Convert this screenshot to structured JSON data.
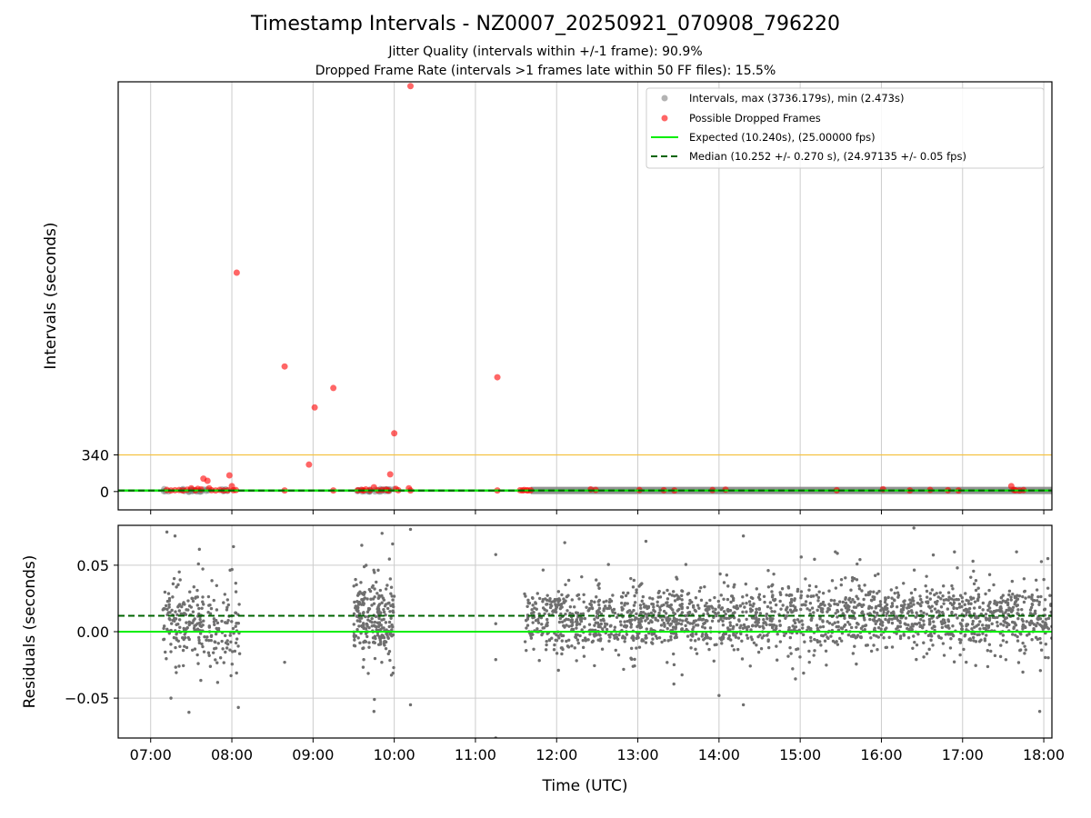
{
  "figure": {
    "title": "Timestamp Intervals - NZ0007_20250921_070908_796220",
    "subtitle_1": "Jitter Quality (intervals within +/-1 frame): 90.9%",
    "subtitle_2": "Dropped Frame Rate (intervals >1 frames late within 50 FF files): 15.5%"
  },
  "colors": {
    "intervals": "#808080",
    "dropped": "#ff0000",
    "expected": "#00ee00",
    "median": "#006400",
    "threshold": "#f5c242",
    "grid": "#cccccc"
  },
  "chart_data": [
    {
      "type": "scatter",
      "panel": "top",
      "xlabel": "",
      "ylabel": "Intervals (seconds)",
      "x_unit": "hours UTC",
      "xlim": [
        6.6,
        18.1
      ],
      "ylim": [
        -170,
        3800
      ],
      "y_ticks": [
        0,
        340
      ],
      "y_tick_labels": [
        "0",
        "340"
      ],
      "x_ticks": [
        7,
        8,
        9,
        10,
        11,
        12,
        13,
        14,
        15,
        16,
        17,
        18
      ],
      "grid": true,
      "legend_position": "upper right",
      "legend": [
        {
          "label": "Intervals, max (3736.179s), min (2.473s)",
          "marker": "circle",
          "color": "#808080"
        },
        {
          "label": "Possible Dropped Frames",
          "marker": "circle",
          "color": "#ff0000"
        },
        {
          "label": "Expected (10.240s), (25.00000 fps)",
          "marker": "solid",
          "color": "#00ee00"
        },
        {
          "label": "Median (10.252 +/- 0.270 s), (24.97135 +/- 0.05 fps)",
          "marker": "dashed",
          "color": "#006400"
        }
      ],
      "hlines": [
        {
          "y": 340,
          "style": "solid",
          "color": "#f5c242"
        },
        {
          "y": 10.24,
          "style": "solid",
          "color": "#00ee00"
        },
        {
          "y": 10.252,
          "style": "dashed",
          "color": "#006400"
        }
      ],
      "dense_intervals_band": {
        "x_start": 11.68,
        "x_end": 18.1,
        "y": 10.25
      },
      "interval_clusters": [
        [
          7.15,
          7.95
        ],
        [
          9.5,
          10.0
        ]
      ],
      "dropped_points": [
        [
          7.2,
          15
        ],
        [
          7.25,
          10
        ],
        [
          7.3,
          12
        ],
        [
          7.35,
          14
        ],
        [
          7.4,
          10
        ],
        [
          7.45,
          18
        ],
        [
          7.5,
          30
        ],
        [
          7.55,
          12
        ],
        [
          7.58,
          25
        ],
        [
          7.62,
          20
        ],
        [
          7.65,
          120
        ],
        [
          7.7,
          100
        ],
        [
          7.72,
          30
        ],
        [
          7.75,
          12
        ],
        [
          7.8,
          10
        ],
        [
          7.85,
          15
        ],
        [
          7.9,
          10
        ],
        [
          7.95,
          12
        ],
        [
          7.97,
          150
        ],
        [
          8.0,
          50
        ],
        [
          8.02,
          12
        ],
        [
          8.05,
          14
        ],
        [
          8.06,
          2030
        ],
        [
          8.65,
          1160
        ],
        [
          8.65,
          10
        ],
        [
          8.95,
          250
        ],
        [
          9.02,
          780
        ],
        [
          9.25,
          960
        ],
        [
          9.25,
          10
        ],
        [
          9.55,
          12
        ],
        [
          9.6,
          15
        ],
        [
          9.62,
          10
        ],
        [
          9.65,
          20
        ],
        [
          9.7,
          12
        ],
        [
          9.75,
          40
        ],
        [
          9.8,
          12
        ],
        [
          9.85,
          15
        ],
        [
          9.9,
          18
        ],
        [
          9.93,
          10
        ],
        [
          9.95,
          160
        ],
        [
          10.0,
          540
        ],
        [
          10.02,
          25
        ],
        [
          10.05,
          12
        ],
        [
          10.18,
          30
        ],
        [
          10.2,
          10
        ],
        [
          10.2,
          3760
        ],
        [
          11.27,
          1060
        ],
        [
          11.27,
          10
        ],
        [
          11.55,
          12
        ],
        [
          11.58,
          10
        ],
        [
          11.6,
          14
        ],
        [
          11.63,
          12
        ],
        [
          11.65,
          10
        ],
        [
          11.68,
          12
        ],
        [
          12.42,
          20
        ],
        [
          12.48,
          15
        ],
        [
          13.02,
          14
        ],
        [
          13.32,
          12
        ],
        [
          13.45,
          10
        ],
        [
          13.92,
          14
        ],
        [
          14.08,
          18
        ],
        [
          15.45,
          12
        ],
        [
          16.02,
          22
        ],
        [
          16.35,
          10
        ],
        [
          16.6,
          15
        ],
        [
          16.82,
          12
        ],
        [
          16.95,
          10
        ],
        [
          17.6,
          50
        ],
        [
          17.63,
          15
        ],
        [
          17.65,
          12
        ],
        [
          17.7,
          10
        ],
        [
          17.75,
          14
        ]
      ]
    },
    {
      "type": "scatter",
      "panel": "bottom",
      "xlabel": "Time (UTC)",
      "ylabel": "Residuals (seconds)",
      "x_unit": "hours UTC",
      "xlim": [
        6.6,
        18.1
      ],
      "ylim": [
        -0.08,
        0.08
      ],
      "y_ticks": [
        -0.05,
        0.0,
        0.05
      ],
      "y_tick_labels": [
        "−0.05",
        "0.00",
        "0.05"
      ],
      "x_ticks": [
        7,
        8,
        9,
        10,
        11,
        12,
        13,
        14,
        15,
        16,
        17,
        18
      ],
      "x_tick_labels": [
        "07:00",
        "08:00",
        "09:00",
        "10:00",
        "11:00",
        "12:00",
        "13:00",
        "14:00",
        "15:00",
        "16:00",
        "17:00",
        "18:00"
      ],
      "grid": true,
      "hlines": [
        {
          "y": 0.0,
          "style": "solid",
          "color": "#00ee00"
        },
        {
          "y": 0.012,
          "style": "dashed",
          "color": "#006400"
        }
      ],
      "residual_clusters": [
        {
          "x_range": [
            7.15,
            7.6
          ],
          "mean": 0.01,
          "spread": 0.025,
          "count": 140
        },
        {
          "x_range": [
            7.6,
            8.1
          ],
          "mean": 0.005,
          "spread": 0.025,
          "count": 120
        },
        {
          "x_range": [
            9.5,
            10.0
          ],
          "mean": 0.01,
          "spread": 0.028,
          "count": 240
        },
        {
          "x_range": [
            11.6,
            18.1
          ],
          "mean": 0.01,
          "spread": 0.022,
          "count": 1900
        }
      ],
      "residual_outliers": [
        [
          7.2,
          0.075
        ],
        [
          7.25,
          -0.05
        ],
        [
          7.3,
          0.072
        ],
        [
          7.6,
          0.062
        ],
        [
          8.02,
          0.064
        ],
        [
          8.08,
          -0.057
        ],
        [
          8.65,
          -0.023
        ],
        [
          9.6,
          0.065
        ],
        [
          9.75,
          -0.06
        ],
        [
          9.85,
          0.074
        ],
        [
          9.98,
          0.066
        ],
        [
          10.2,
          0.077
        ],
        [
          10.2,
          -0.055
        ],
        [
          11.25,
          0.058
        ],
        [
          11.25,
          0.006
        ],
        [
          11.25,
          -0.021
        ],
        [
          11.25,
          -0.08
        ],
        [
          12.1,
          0.067
        ],
        [
          13.1,
          0.068
        ],
        [
          14.0,
          -0.048
        ],
        [
          14.3,
          0.072
        ],
        [
          14.3,
          -0.055
        ],
        [
          16.4,
          0.078
        ],
        [
          16.9,
          0.06
        ],
        [
          17.95,
          -0.06
        ],
        [
          18.05,
          0.055
        ]
      ]
    }
  ]
}
